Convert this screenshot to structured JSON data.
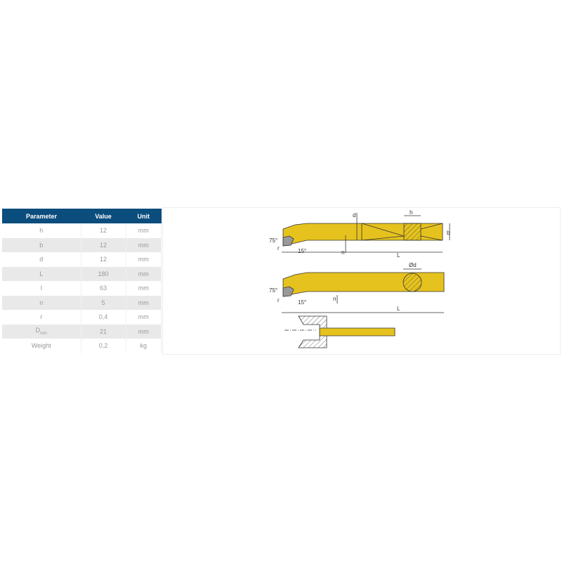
{
  "table": {
    "headers": [
      "Parameter",
      "Value",
      "Unit"
    ],
    "rows": [
      {
        "param": "h",
        "value": "12",
        "unit": "mm"
      },
      {
        "param": "b",
        "value": "12",
        "unit": "mm"
      },
      {
        "param": "d",
        "value": "12",
        "unit": "mm"
      },
      {
        "param": "L",
        "value": "180",
        "unit": "mm"
      },
      {
        "param": "l",
        "value": "63",
        "unit": "mm"
      },
      {
        "param": "n",
        "value": "5",
        "unit": "mm"
      },
      {
        "param": "r",
        "value": "0,4",
        "unit": "mm"
      },
      {
        "param": "D",
        "param_sub": "min",
        "value": "21",
        "unit": "mm"
      },
      {
        "param": "Weight",
        "value": "0,2",
        "unit": "kg"
      }
    ]
  },
  "drawing": {
    "labels": {
      "d": "d",
      "h": "h",
      "b": "b",
      "n": "n",
      "L": "L",
      "angle75": "75°",
      "r": "r",
      "angle15": "15°",
      "dia": "Ød"
    },
    "tool_color": "#e6c21e"
  }
}
